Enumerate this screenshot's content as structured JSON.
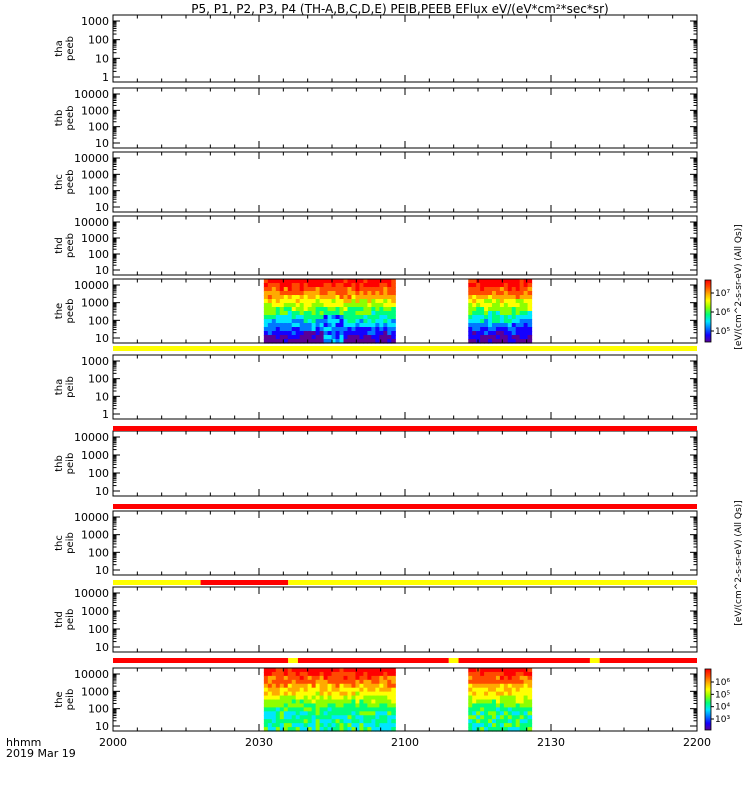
{
  "title": "P5, P1, P2, P3, P4 (TH-A,B,C,D,E) PEIB,PEEB EFlux eV/(eV*cm²*sec*sr)",
  "time_axis": {
    "labels": [
      "2000",
      "2030",
      "2100",
      "2130",
      "2200"
    ],
    "label_hhmm": "hhmm",
    "date": "2019 Mar 19"
  },
  "colors": {
    "bar_yellow": "#ffff00",
    "bar_red": "#ff0000",
    "bar_black": "#000000",
    "gap_white": "#ffffff"
  },
  "colorbar_palette": [
    "#5a0096",
    "#1400ff",
    "#0078ff",
    "#00e6ff",
    "#00ff7a",
    "#8cff00",
    "#ffff00",
    "#ffaa00",
    "#ff4a00",
    "#ff0000"
  ],
  "chart_data": [
    {
      "type": "heatmap",
      "ylabel": [
        "tha",
        "peeb"
      ],
      "y_log": true,
      "yticks": [
        "1000",
        "100",
        "10",
        "1"
      ],
      "has_data": false
    },
    {
      "type": "heatmap",
      "ylabel": [
        "thb",
        "peeb"
      ],
      "y_log": true,
      "yticks": [
        "10000",
        "1000",
        "100",
        "10"
      ],
      "has_data": false
    },
    {
      "type": "heatmap",
      "ylabel": [
        "thc",
        "peeb"
      ],
      "y_log": true,
      "yticks": [
        "10000",
        "1000",
        "100",
        "10"
      ],
      "has_data": false
    },
    {
      "type": "heatmap",
      "ylabel": [
        "thd",
        "peeb"
      ],
      "y_log": true,
      "yticks": [
        "10000",
        "1000",
        "100",
        "10"
      ],
      "has_data": false
    },
    {
      "type": "heatmap",
      "ylabel": [
        "the",
        "peeb"
      ],
      "y_log": true,
      "yticks": [
        "10000",
        "1000",
        "100",
        "10"
      ],
      "has_data": true,
      "data_intervals": [
        {
          "start": "2031",
          "end": "2058"
        },
        {
          "start": "2113",
          "end": "2126"
        }
      ],
      "colorbar": {
        "label": "[eV/(cm^2-s-sr-eV) (All Qs)]",
        "ticks": [
          "10⁷",
          "10⁶",
          "10⁵"
        ]
      }
    },
    {
      "type": "heatmap",
      "ylabel": [
        "tha",
        "peib"
      ],
      "y_log": true,
      "yticks": [
        "1000",
        "100",
        "10",
        "1"
      ],
      "has_data": false
    },
    {
      "type": "heatmap",
      "ylabel": [
        "thb",
        "peib"
      ],
      "y_log": true,
      "yticks": [
        "10000",
        "1000",
        "100",
        "10"
      ],
      "has_data": false
    },
    {
      "type": "heatmap",
      "ylabel": [
        "thc",
        "peib"
      ],
      "y_log": true,
      "yticks": [
        "10000",
        "1000",
        "100",
        "10"
      ],
      "has_data": false
    },
    {
      "type": "heatmap",
      "ylabel": [
        "thd",
        "peib"
      ],
      "y_log": true,
      "yticks": [
        "10000",
        "1000",
        "100",
        "10"
      ],
      "has_data": false
    },
    {
      "type": "heatmap",
      "ylabel": [
        "the",
        "peib"
      ],
      "y_log": true,
      "yticks": [
        "10000",
        "1000",
        "100",
        "10"
      ],
      "has_data": true,
      "data_intervals": [
        {
          "start": "2031",
          "end": "2058"
        },
        {
          "start": "2113",
          "end": "2126"
        }
      ],
      "colorbar": {
        "label": "[eV/(cm^2-s-sr-eV) (All Qs)]",
        "ticks": [
          "10⁶",
          "10⁵",
          "10⁴",
          "10³"
        ]
      }
    }
  ],
  "status_bars": [
    {
      "after_panel": 5,
      "segments": [
        {
          "from": "2000",
          "to": "2200",
          "color": "yellow"
        }
      ]
    },
    {
      "after_panel": 6,
      "segments": [
        {
          "from": "2000",
          "to": "2200",
          "color": "red"
        }
      ]
    },
    {
      "after_panel": 7,
      "segments": [
        {
          "from": "2000",
          "to": "2200",
          "color": "red"
        }
      ]
    },
    {
      "after_panel": 8,
      "segments": [
        {
          "from": "2000",
          "to": "2018",
          "color": "yellow"
        },
        {
          "from": "2018",
          "to": "2036",
          "color": "red"
        },
        {
          "from": "2036",
          "to": "2200",
          "color": "yellow"
        }
      ]
    },
    {
      "after_panel": 9,
      "segments": [
        {
          "from": "2000",
          "to": "2036",
          "color": "red"
        },
        {
          "from": "2036",
          "to": "2038",
          "color": "yellow"
        },
        {
          "from": "2038",
          "to": "2109",
          "color": "red"
        },
        {
          "from": "2109",
          "to": "2111",
          "color": "yellow"
        },
        {
          "from": "2111",
          "to": "2138",
          "color": "red"
        },
        {
          "from": "2138",
          "to": "2140",
          "color": "yellow"
        },
        {
          "from": "2140",
          "to": "2200",
          "color": "red"
        }
      ]
    }
  ]
}
